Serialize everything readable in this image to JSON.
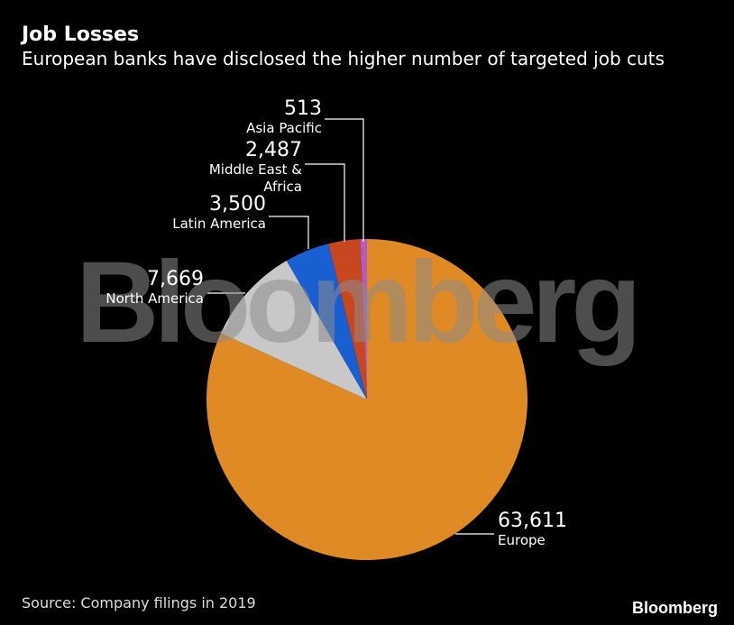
{
  "chart_data": {
    "type": "pie",
    "title": "Job Losses",
    "subtitle": "European banks have disclosed the higher number of targeted job cuts",
    "categories": [
      "Europe",
      "North America",
      "Latin America",
      "Middle East & Africa",
      "Asia Pacific"
    ],
    "values": [
      63611,
      7669,
      3500,
      2487,
      513
    ],
    "value_labels": [
      "63,611",
      "7,669",
      "3,500",
      "2,487",
      "513"
    ],
    "colors": [
      "#e08a25",
      "#c8c8c8",
      "#1a5fd1",
      "#c9471f",
      "#b05cc6"
    ],
    "watermark": "Bloomberg",
    "source": "Source: Company filings in 2019",
    "brand": "Bloomberg"
  }
}
